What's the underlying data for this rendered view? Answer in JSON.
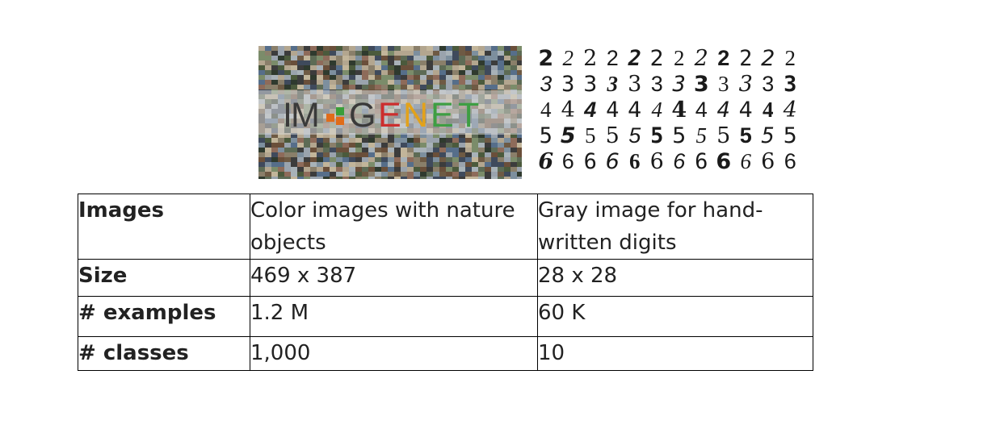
{
  "figure": {
    "imagenet_logo": {
      "letters": [
        "I",
        "M",
        "G",
        "E",
        "N",
        "E",
        "T"
      ],
      "colors": {
        "dot_orange": "#e06c1a",
        "dot_green": "#3a9e3a",
        "letter_red": "#cc2e2e",
        "letter_yellow": "#e3a21a",
        "letter_green": "#3e9e43",
        "letter_gray": "#3a3a3a"
      }
    },
    "mnist_rows": [
      [
        "2",
        "2",
        "2",
        "2",
        "2",
        "2",
        "2",
        "2",
        "2",
        "2",
        "2",
        "2"
      ],
      [
        "3",
        "3",
        "3",
        "3",
        "3",
        "3",
        "3",
        "3",
        "3",
        "3",
        "3",
        "3"
      ],
      [
        "4",
        "4",
        "4",
        "4",
        "4",
        "4",
        "4",
        "4",
        "4",
        "4",
        "4",
        "4"
      ],
      [
        "5",
        "5",
        "5",
        "5",
        "5",
        "5",
        "5",
        "5",
        "5",
        "5",
        "5",
        "5"
      ],
      [
        "6",
        "6",
        "6",
        "6",
        "6",
        "6",
        "6",
        "6",
        "6",
        "6",
        "6",
        "6"
      ]
    ]
  },
  "table": {
    "rows": [
      {
        "label": "Images",
        "a": "Color images with nature objects",
        "b": "Gray image for hand-written digits"
      },
      {
        "label": "Size",
        "a": "469 x 387",
        "b": "28 x 28"
      },
      {
        "label": "# examples",
        "a": "1.2 M",
        "b": "60 K"
      },
      {
        "label": "# classes",
        "a": "1,000",
        "b": "10"
      }
    ]
  }
}
